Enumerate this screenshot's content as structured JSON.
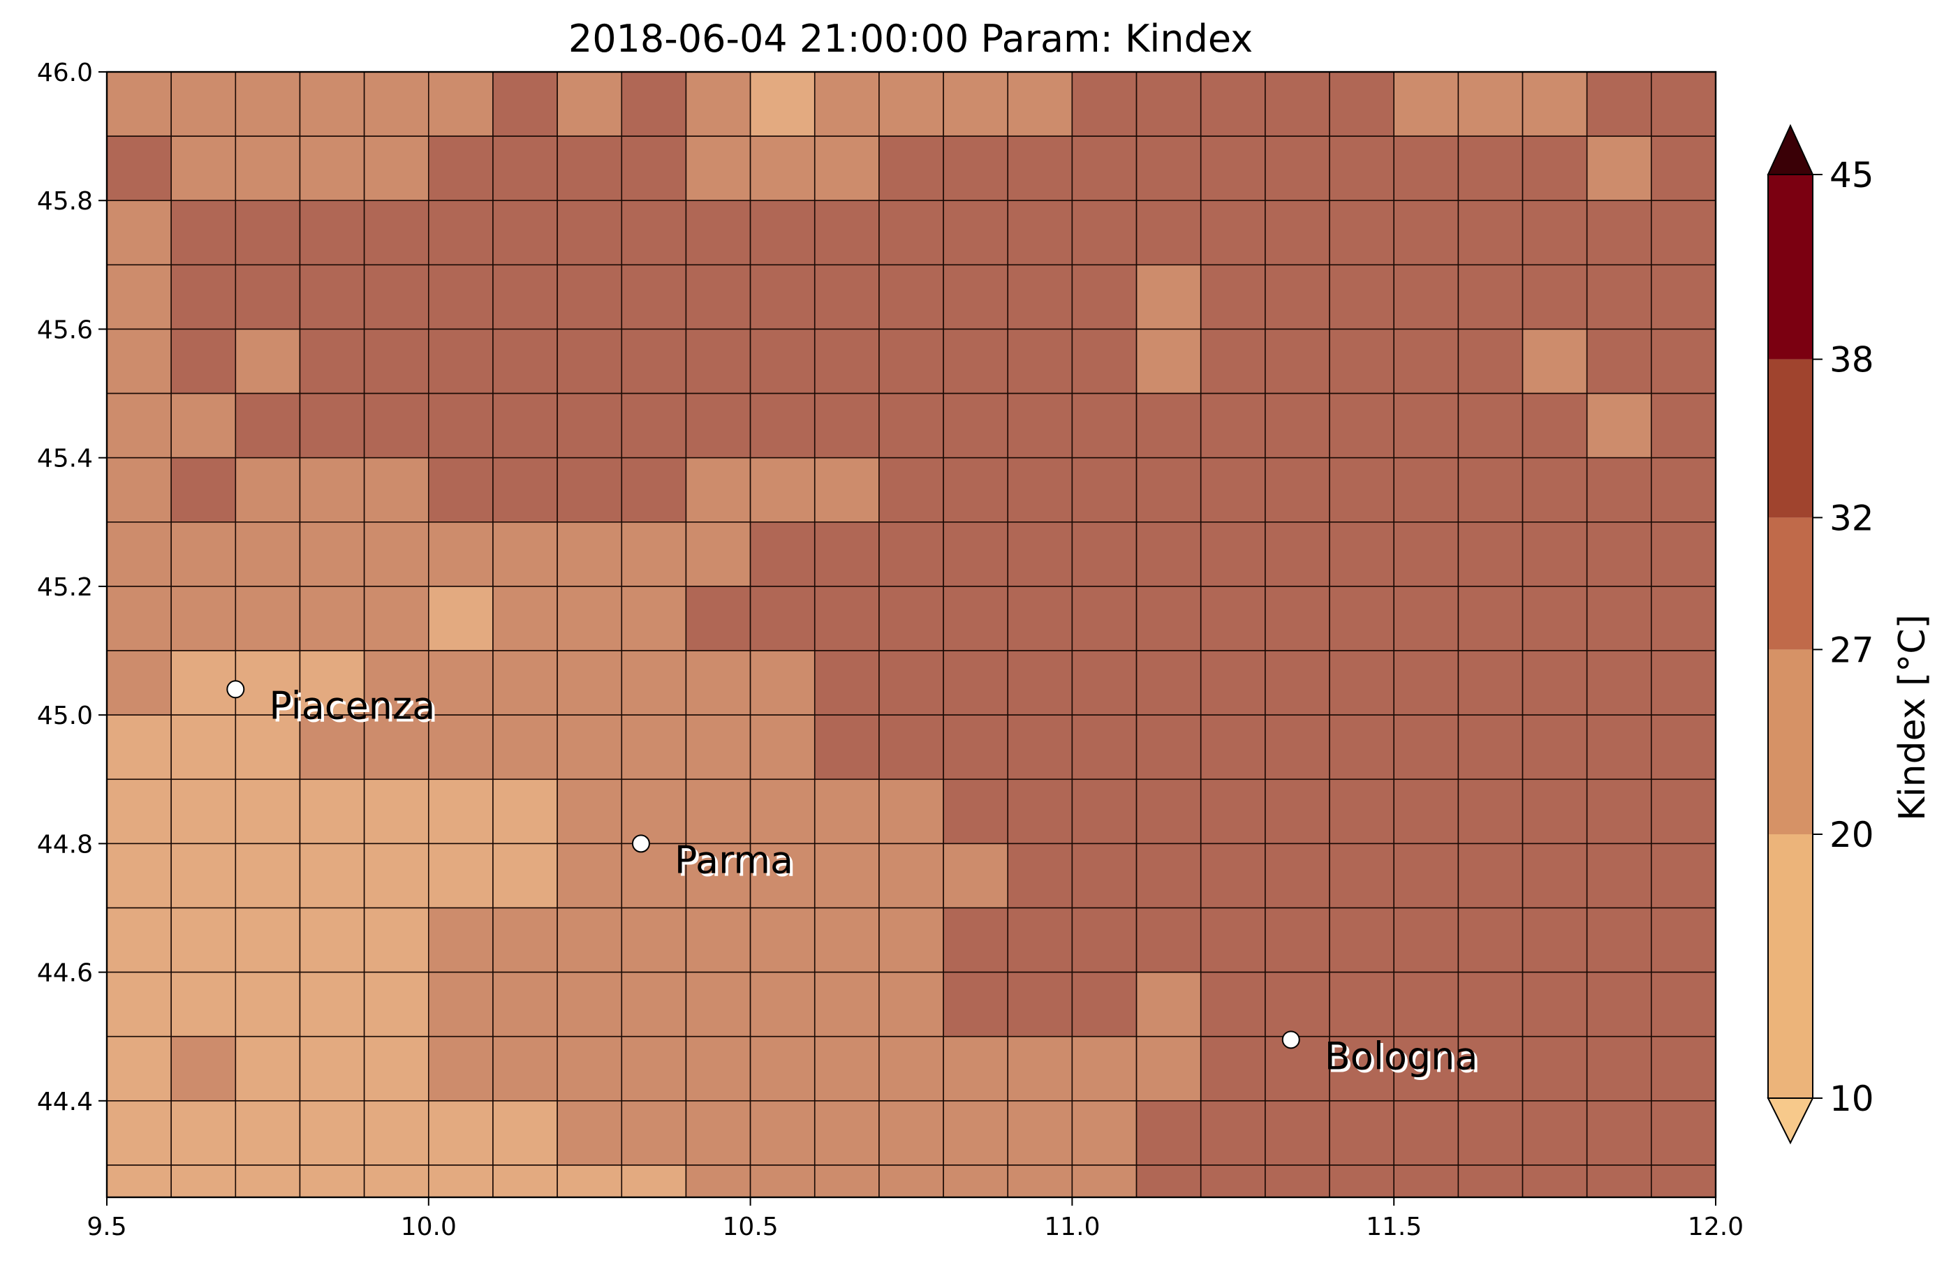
{
  "chart_data": {
    "type": "heatmap",
    "title": "2018-06-04 21:00:00 Param: Kindex",
    "xlim": [
      9.5,
      12.0
    ],
    "ylim": [
      44.25,
      46.0
    ],
    "x_ticks": [
      "9.5",
      "10.0",
      "10.5",
      "11.0",
      "11.5",
      "12.0"
    ],
    "y_ticks": [
      "44.4",
      "44.6",
      "44.8",
      "45.0",
      "45.2",
      "45.4",
      "45.6",
      "45.8",
      "46.0"
    ],
    "grid_resolution_deg": 0.1,
    "colorbar": {
      "label": "Kindex [°C]",
      "ticks": [
        "10",
        "20",
        "27",
        "32",
        "38",
        "45"
      ],
      "bounds": [
        10,
        20,
        27,
        32,
        38,
        45
      ],
      "colors": [
        "#ecb47a",
        "#d69266",
        "#c06a4a",
        "#a0442e",
        "#7b0011"
      ],
      "extend_below_color": "#f7c98b",
      "extend_above_color": "#3a0006",
      "placement": "right"
    },
    "class_colors": [
      "#e3aa80",
      "#cd8c6c",
      "#b06755"
    ],
    "grid_rows_top_to_bottom": [
      "1111112121011112222211122",
      "2111122221112222222222212",
      "1222222222222222222222222",
      "1222222222222222122222222",
      "1212222222222222122222122",
      "1122222222222222222222212",
      "1211122221112222222222222",
      "1111111111222222222222222",
      "1111101112222222222222222",
      "1000111111122222222222222",
      "0001111111122222222222222",
      "0000000111111222222222222",
      "0000000111111122222222222",
      "0000011111111222222222222",
      "0000011111111222122222222",
      "0100011111111111122222222",
      "0000000111111111222222222",
      "0000000001111111222222222"
    ],
    "cities": [
      {
        "name": "Piacenza",
        "lon": 9.7,
        "lat": 45.04
      },
      {
        "name": "Parma",
        "lon": 10.33,
        "lat": 44.8
      },
      {
        "name": "Bologna",
        "lon": 11.34,
        "lat": 44.495
      }
    ]
  }
}
